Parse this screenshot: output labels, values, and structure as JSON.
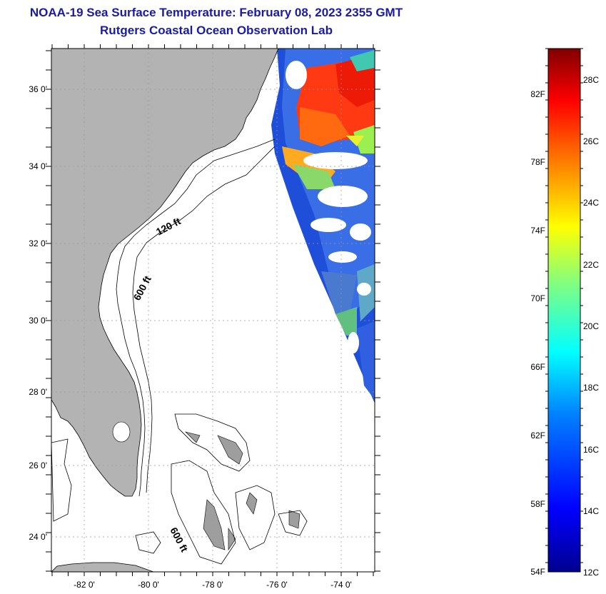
{
  "header": {
    "title": "NOAA-19 Sea Surface Temperature:  February 08, 2023 2355 GMT",
    "subtitle": "Rutgers Coastal Ocean Observation Lab"
  },
  "map": {
    "lat_labels": [
      "36 0'",
      "34 0'",
      "32 0'",
      "30 0'",
      "28 0'",
      "26 0'",
      "24 0'"
    ],
    "lon_labels": [
      "-82 0'",
      "-80 0'",
      "-78 0'",
      "-76 0'",
      "-74 0'"
    ],
    "contour_labels": [
      "120 ft",
      "600 ft",
      "600 ft"
    ],
    "land_color": "#b3b3b3",
    "ocean_no_data_color": "#ffffff"
  },
  "colorbar": {
    "fahrenheit_labels": [
      "82F",
      "78F",
      "74F",
      "70F",
      "66F",
      "62F",
      "58F",
      "54F"
    ],
    "celsius_labels": [
      "28C",
      "26C",
      "24C",
      "22C",
      "20C",
      "18C",
      "16C",
      "14C",
      "12C"
    ],
    "colors": [
      "#00008f",
      "#0000ff",
      "#0080ff",
      "#00ffff",
      "#80ff80",
      "#ffff00",
      "#ff8000",
      "#ff0000",
      "#800000"
    ]
  }
}
